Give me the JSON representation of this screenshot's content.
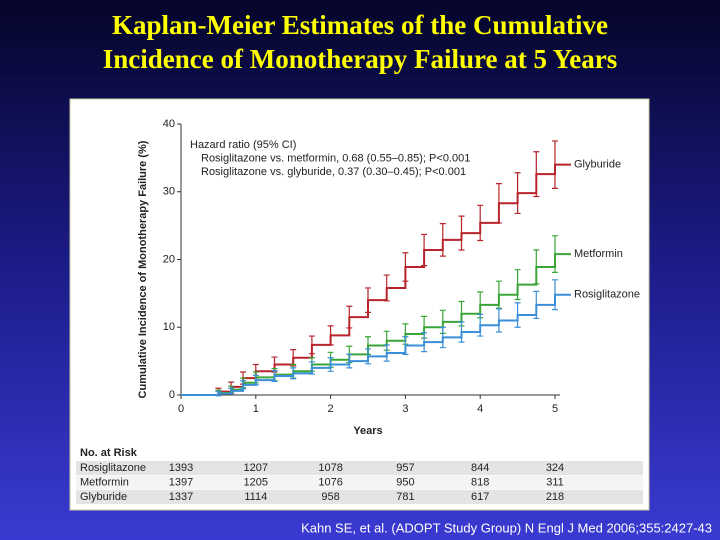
{
  "slide_title": [
    "Kaplan-Meier Estimates of the Cumulative",
    "Incidence of Monotherapy Failure at 5 Years"
  ],
  "citation": "Kahn SE, et al. (ADOPT Study Group) N Engl J Med 2006;355:2427-43",
  "chart_data": {
    "type": "step",
    "annotation": [
      "Hazard ratio (95% CI)",
      "Rosiglitazone vs. metformin, 0.68 (0.55–0.85); P<0.001",
      "Rosiglitazone vs. glyburide, 0.37 (0.30–0.45); P<0.001"
    ],
    "xlabel": "Years",
    "ylabel": "Cumulative Incidence of Monotherapy Failure (%)",
    "x": [
      0,
      0.5,
      0.67,
      0.83,
      1,
      1.25,
      1.5,
      1.75,
      2,
      2.25,
      2.5,
      2.75,
      3,
      3.25,
      3.5,
      3.75,
      4,
      4.25,
      4.5,
      4.75,
      5
    ],
    "series": [
      {
        "name": "Glyburide",
        "color": "#b8242b",
        "values": [
          0,
          0.5,
          1.2,
          2.5,
          3.5,
          4.5,
          5.5,
          7.4,
          8.8,
          11.5,
          14,
          15.8,
          18.9,
          21.4,
          22.9,
          23.9,
          25.4,
          28.3,
          29.8,
          32.6,
          34
        ],
        "errors": [
          0,
          0.5,
          0.7,
          0.9,
          1,
          1.1,
          1.2,
          1.3,
          1.4,
          1.6,
          1.8,
          1.9,
          2.1,
          2.3,
          2.4,
          2.5,
          2.6,
          2.9,
          3.0,
          3.3,
          3.5
        ]
      },
      {
        "name": "Metformin",
        "color": "#3aa537",
        "values": [
          0,
          0.3,
          0.8,
          1.8,
          2.6,
          3.0,
          3.5,
          4.5,
          5.2,
          6.0,
          7.3,
          8.0,
          9.0,
          10.0,
          10.8,
          12.0,
          13.3,
          14.8,
          16.3,
          18.9,
          20.8
        ],
        "errors": [
          0,
          0.4,
          0.5,
          0.7,
          0.8,
          0.9,
          1.0,
          1.0,
          1.1,
          1.2,
          1.3,
          1.4,
          1.5,
          1.6,
          1.7,
          1.8,
          1.9,
          2.0,
          2.2,
          2.5,
          2.7
        ]
      },
      {
        "name": "Rosiglitazone",
        "color": "#3a8fd8",
        "values": [
          0,
          0.2,
          0.6,
          1.5,
          2.2,
          2.8,
          3.2,
          4.0,
          4.5,
          5.0,
          5.7,
          6.2,
          7.3,
          7.8,
          8.5,
          9.3,
          10.3,
          11.0,
          11.8,
          13.3,
          14.8
        ],
        "errors": [
          0,
          0.3,
          0.4,
          0.6,
          0.7,
          0.8,
          0.8,
          0.9,
          1.0,
          1.0,
          1.1,
          1.2,
          1.3,
          1.4,
          1.5,
          1.5,
          1.6,
          1.7,
          1.8,
          2.0,
          2.2
        ]
      }
    ],
    "xlim": [
      0,
      5
    ],
    "xticks": [
      0,
      1,
      2,
      3,
      4,
      5
    ],
    "ylim": [
      0,
      40
    ],
    "yticks": [
      0,
      10,
      20,
      30,
      40
    ]
  },
  "risk_table": {
    "title": "No. at Risk",
    "rows": [
      {
        "name": "Rosiglitazone",
        "values": [
          "1393",
          "1207",
          "1078",
          "957",
          "844",
          "324"
        ]
      },
      {
        "name": "Metformin",
        "values": [
          "1397",
          "1205",
          "1076",
          "950",
          "818",
          "311"
        ]
      },
      {
        "name": "Glyburide",
        "values": [
          "1337",
          "1114",
          "958",
          "781",
          "617",
          "218"
        ]
      }
    ]
  }
}
